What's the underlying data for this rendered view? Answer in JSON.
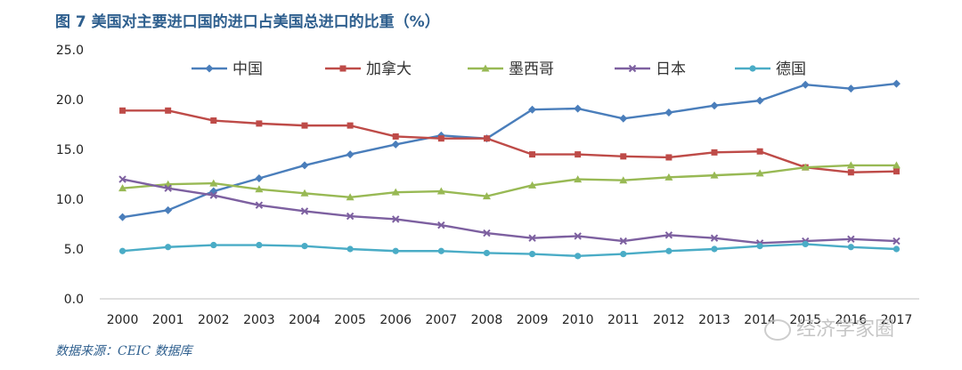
{
  "title": "图 7  美国对主要进口国的进口占美国总进口的比重（%）",
  "source": "数据来源：CEIC 数据库",
  "watermark": "经济学家圈",
  "chart_data": {
    "type": "line",
    "title": "图 7  美国对主要进口国的进口占美国总进口的比重（%）",
    "xlabel": "",
    "ylabel": "",
    "categories": [
      "2000",
      "2001",
      "2002",
      "2003",
      "2004",
      "2005",
      "2006",
      "2007",
      "2008",
      "2009",
      "2010",
      "2011",
      "2012",
      "2013",
      "2014",
      "2015",
      "2016",
      "2017"
    ],
    "ylim": [
      0,
      25
    ],
    "yticks": [
      "0.0",
      "5.0",
      "10.0",
      "15.0",
      "20.0",
      "25.0"
    ],
    "grid": false,
    "legend_position": "top",
    "series": [
      {
        "name": "中国",
        "color": "#4a7ebb",
        "marker": "diamond",
        "values": [
          8.2,
          8.9,
          10.8,
          12.1,
          13.4,
          14.5,
          15.5,
          16.4,
          16.1,
          19.0,
          19.1,
          18.1,
          18.7,
          19.4,
          19.9,
          21.5,
          21.1,
          21.6
        ]
      },
      {
        "name": "加拿大",
        "color": "#be4b48",
        "marker": "square",
        "values": [
          18.9,
          18.9,
          17.9,
          17.6,
          17.4,
          17.4,
          16.3,
          16.1,
          16.1,
          14.5,
          14.5,
          14.3,
          14.2,
          14.7,
          14.8,
          13.2,
          12.7,
          12.8
        ]
      },
      {
        "name": "墨西哥",
        "color": "#98b954",
        "marker": "triangle",
        "values": [
          11.1,
          11.5,
          11.6,
          11.0,
          10.6,
          10.2,
          10.7,
          10.8,
          10.3,
          11.4,
          12.0,
          11.9,
          12.2,
          12.4,
          12.6,
          13.2,
          13.4,
          13.4
        ]
      },
      {
        "name": "日本",
        "color": "#7d60a0",
        "marker": "x",
        "values": [
          12.0,
          11.1,
          10.4,
          9.4,
          8.8,
          8.3,
          8.0,
          7.4,
          6.6,
          6.1,
          6.3,
          5.8,
          6.4,
          6.1,
          5.6,
          5.8,
          6.0,
          5.8
        ]
      },
      {
        "name": "德国",
        "color": "#4aacc6",
        "marker": "circle",
        "values": [
          4.8,
          5.2,
          5.4,
          5.4,
          5.3,
          5.0,
          4.8,
          4.8,
          4.6,
          4.5,
          4.3,
          4.5,
          4.8,
          5.0,
          5.3,
          5.5,
          5.2,
          5.0
        ]
      }
    ]
  }
}
